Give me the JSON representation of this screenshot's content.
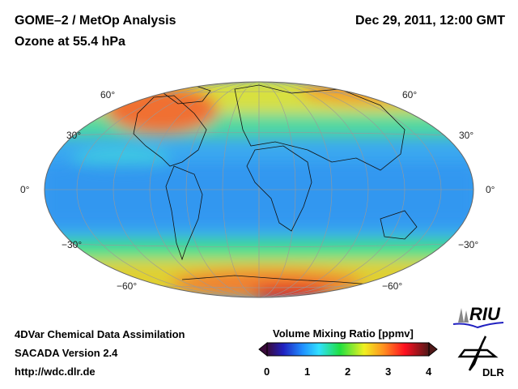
{
  "header": {
    "title": "GOME–2 / MetOp Analysis",
    "subtitle": "Ozone at 55.4 hPa",
    "datetime": "Dec 29, 2011, 12:00 GMT"
  },
  "map": {
    "projection": "Hammer",
    "lat_labels_left": [
      "60°",
      "30°",
      "0°",
      "−30°",
      "−60°"
    ],
    "lat_labels_right": [
      "60°",
      "30°",
      "0°",
      "−30°",
      "−60°"
    ]
  },
  "footer": {
    "line1": "4DVar Chemical Data Assimilation",
    "line2": "SACADA Version 2.4",
    "url": "http://wdc.dlr.de"
  },
  "colorbar": {
    "title": "Volume Mixing Ratio [ppmv]",
    "ticks": [
      "0",
      "1",
      "2",
      "3",
      "4"
    ],
    "range": [
      0,
      4
    ],
    "colors": [
      "#3a0a3a",
      "#2020c0",
      "#2090ff",
      "#30e0ff",
      "#20e040",
      "#f0f020",
      "#ff9020",
      "#ff1020",
      "#501818"
    ]
  },
  "logos": {
    "riu": "RIU",
    "dlr": "DLR"
  }
}
